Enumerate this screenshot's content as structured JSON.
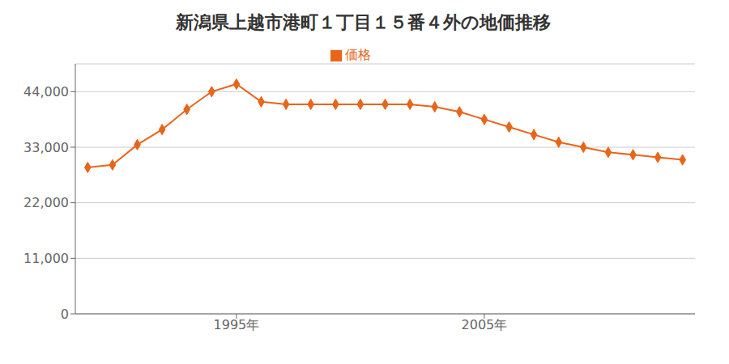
{
  "chart_data": {
    "type": "line",
    "title": "新潟県上越市港町１丁目１５番４外の地価推移",
    "x": [
      1989,
      1990,
      1991,
      1992,
      1993,
      1994,
      1995,
      1996,
      1997,
      1998,
      1999,
      2000,
      2001,
      2002,
      2003,
      2004,
      2005,
      2006,
      2007,
      2008,
      2009,
      2010,
      2011,
      2012,
      2013
    ],
    "series": [
      {
        "name": "価格",
        "color": "#e8651a",
        "marker": "diamond",
        "values": [
          29000,
          29500,
          33500,
          36500,
          40500,
          44000,
          45500,
          42000,
          41500,
          41500,
          41500,
          41500,
          41500,
          41500,
          41000,
          40000,
          38500,
          37000,
          35500,
          34000,
          33000,
          32000,
          31500,
          31000,
          30500
        ]
      }
    ],
    "xlim": [
      1988.5,
      2013.5
    ],
    "xticks": [
      {
        "value": 1995,
        "label": "1995年"
      },
      {
        "value": 2005,
        "label": "2005年"
      }
    ],
    "ylim": [
      0,
      49500
    ],
    "yticks": [
      0,
      {
        "value": 11000,
        "label": "11,000"
      },
      {
        "value": 22000,
        "label": "22,000"
      },
      {
        "value": 33000,
        "label": "33,000"
      },
      {
        "value": 44000,
        "label": "44,000"
      }
    ],
    "grid": "y",
    "legend": "top"
  }
}
